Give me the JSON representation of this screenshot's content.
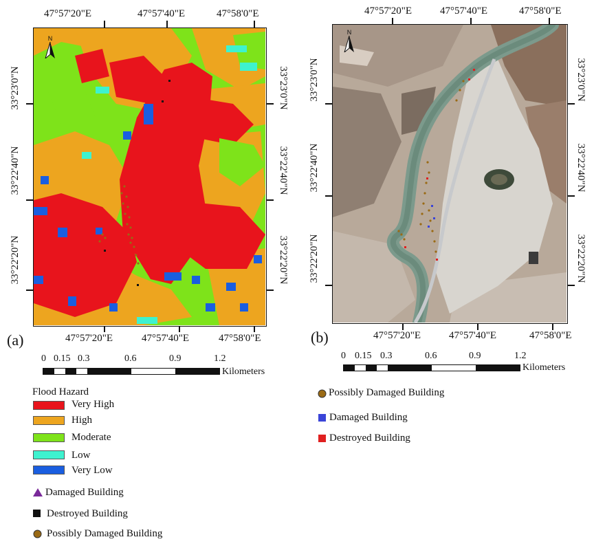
{
  "panel_a": {
    "label": "(a)",
    "top_coords": [
      "47°57'20\"E",
      "47°57'40\"E",
      "47°58'0\"E"
    ],
    "bottom_coords": [
      "47°57'20\"E",
      "47°57'40\"E",
      "47°58'0\"E"
    ],
    "left_coords": [
      "33°22'20\"N",
      "33°22'40\"N",
      "33°23'0\"N"
    ],
    "right_coords": [
      "33°22'20\"N",
      "33°22'40\"N",
      "33°23'0\"N"
    ],
    "north_label": "N",
    "scale": {
      "ticks": [
        "0",
        "0.15",
        "0.3",
        "0.6",
        "0.9",
        "1.2"
      ],
      "unit": "Kilometers"
    },
    "legend": {
      "title": "Flood Hazard",
      "classes": [
        {
          "label": "Very High",
          "color": "#e8141c"
        },
        {
          "label": "High",
          "color": "#eda51f"
        },
        {
          "label": "Moderate",
          "color": "#7ee31a"
        },
        {
          "label": "Low",
          "color": "#3ef2cf"
        },
        {
          "label": "Very Low",
          "color": "#1a5ee0"
        }
      ],
      "buildings": [
        {
          "label": "Damaged Building",
          "symbol": "triangle",
          "color": "#7a2a9a"
        },
        {
          "label": "Destroyed Building",
          "symbol": "square",
          "color": "#111111"
        },
        {
          "label": "Possibly Damaged Building",
          "symbol": "circle",
          "color": "#9a6a14"
        }
      ]
    }
  },
  "panel_b": {
    "label": "(b)",
    "top_coords": [
      "47°57'20\"E",
      "47°57'40\"E",
      "47°58'0\"E"
    ],
    "bottom_coords": [
      "47°57'20\"E",
      "47°57'40\"E",
      "47°58'0\"E"
    ],
    "left_coords": [
      "33°22'20\"N",
      "33°22'40\"N",
      "33°23'0\"N"
    ],
    "right_coords": [
      "33°22'20\"N",
      "33°22'40\"N",
      "33°23'0\"N"
    ],
    "north_label": "N",
    "scale": {
      "ticks": [
        "0",
        "0.15",
        "0.3",
        "0.6",
        "0.9",
        "1.2"
      ],
      "unit": "Kilometers"
    },
    "legend": [
      {
        "label": "Possibly Damaged Building",
        "symbol": "circle",
        "color": "#9a6a14"
      },
      {
        "label": "Damaged Building",
        "symbol": "square",
        "color": "#3a44d8"
      },
      {
        "label": "Destroyed Building",
        "symbol": "square",
        "color": "#e02020"
      }
    ]
  },
  "colors": {
    "satellite_base": "#b8a99a",
    "river": "#7c9a8c",
    "road": "#c7c9cc",
    "urban": "#d8d5cf",
    "hill": "#8a6f5c"
  }
}
